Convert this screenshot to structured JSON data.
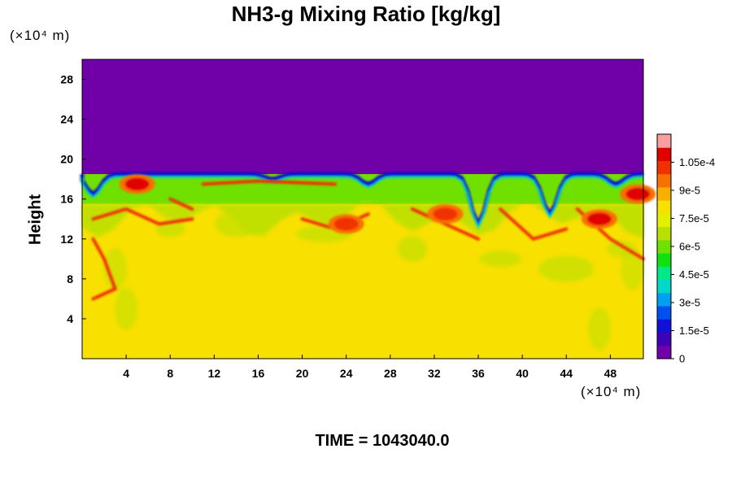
{
  "chart_data": {
    "type": "heatmap",
    "title": "NH3-g Mixing Ratio [kg/kg]",
    "xlabel": "",
    "ylabel": "Height",
    "x_unit": "(×10⁴ m)",
    "y_unit": "(×10⁴ m)",
    "xlim": [
      0,
      51
    ],
    "ylim": [
      0,
      30
    ],
    "x_ticks": [
      "4",
      "8",
      "12",
      "16",
      "20",
      "24",
      "28",
      "32",
      "36",
      "40",
      "44",
      "48"
    ],
    "y_ticks": [
      "4",
      "8",
      "12",
      "16",
      "20",
      "24",
      "28"
    ],
    "footer": "TIME = 1043040.0",
    "colorbar": {
      "min": 0,
      "max": 0.00012,
      "tick_labels": [
        "0",
        "1.5e-5",
        "3e-5",
        "4.5e-5",
        "6e-5",
        "7.5e-5",
        "9e-5",
        "1.05e-4"
      ],
      "tick_values": [
        0,
        1.5e-05,
        3e-05,
        4.5e-05,
        6e-05,
        7.5e-05,
        9e-05,
        0.000105
      ],
      "colors": [
        "#7000a8",
        "#4000b8",
        "#1010d8",
        "#0050f0",
        "#00a0f0",
        "#00d8c8",
        "#00e888",
        "#10e010",
        "#70e000",
        "#b8e000",
        "#e0f000",
        "#f8e000",
        "#f8b000",
        "#f87000",
        "#f03000",
        "#e00000",
        "#f8a0a0"
      ]
    },
    "regions": {
      "upper_layer": {
        "value": 0,
        "y_range": [
          18.5,
          30
        ]
      },
      "cloud_band": {
        "value": 6e-05,
        "y_range": [
          15.5,
          18.5
        ]
      },
      "lower_layer": {
        "value": 8e-05,
        "y_range": [
          0,
          15.5
        ]
      },
      "boundary_layer": {
        "value": 1.5e-05,
        "y": 18.5
      },
      "maxima": [
        {
          "x": 5,
          "y": 17.5,
          "value": 0.00011
        },
        {
          "x": 33,
          "y": 14.5,
          "value": 0.0001
        },
        {
          "x": 47,
          "y": 14,
          "value": 0.00011
        },
        {
          "x": 50.5,
          "y": 16.5,
          "value": 0.00011
        },
        {
          "x": 24,
          "y": 13.5,
          "value": 0.0001
        }
      ]
    }
  }
}
